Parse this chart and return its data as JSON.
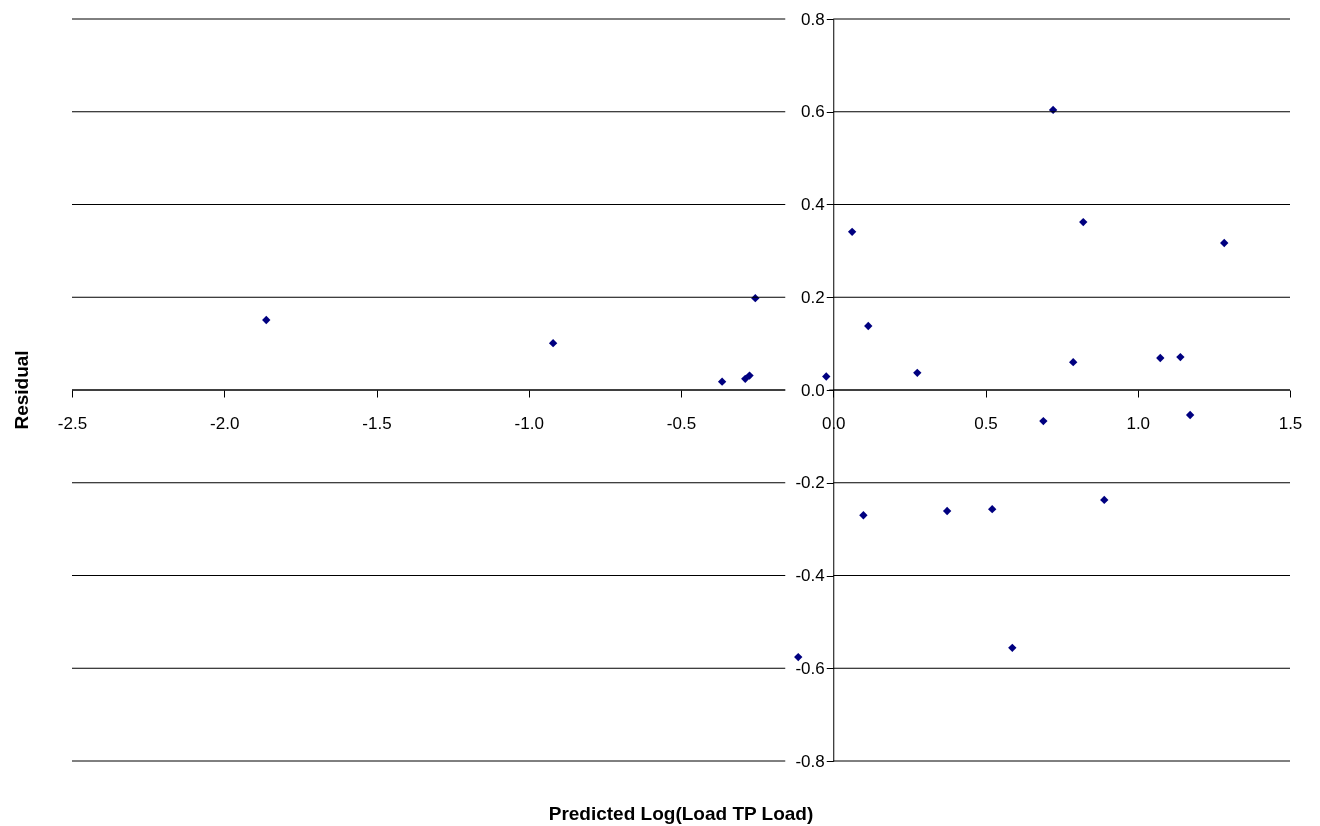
{
  "chart_data": {
    "type": "scatter",
    "xlabel": "Predicted Log(Load TP Load)",
    "ylabel": "Residual",
    "x": [
      -1.862,
      -0.92,
      -0.365,
      -0.289,
      -0.275,
      -0.256,
      -0.023,
      0.062,
      0.115,
      0.276,
      -0.115,
      0.099,
      0.374,
      0.522,
      0.588,
      0.69,
      0.722,
      0.788,
      0.821,
      0.89,
      1.074,
      1.14,
      1.172,
      1.284
    ],
    "series": [
      {
        "color": "#000080",
        "values": [
          0.151,
          0.101,
          0.018,
          0.024,
          0.031,
          0.198,
          0.029,
          0.341,
          0.138,
          0.037,
          -0.576,
          -0.27,
          -0.261,
          -0.257,
          -0.556,
          -0.067,
          0.604,
          0.06,
          0.362,
          -0.237,
          0.069,
          0.071,
          -0.054,
          0.317
        ]
      }
    ],
    "xlim": [
      -2.5,
      1.5
    ],
    "xticks": [
      -2.5,
      {
        "value": -2.0,
        "label": "-2.0"
      },
      -1.5,
      {
        "value": -1.0,
        "label": "-1.0"
      },
      -0.5,
      {
        "value": 0,
        "label": "0.0"
      },
      0.5,
      {
        "value": 1.0,
        "label": "1.0"
      },
      1.5
    ],
    "ylim": [
      -0.8,
      0.8
    ],
    "yticks": [
      -0.8,
      -0.6,
      -0.4,
      -0.2,
      {
        "value": 0,
        "label": "0.0"
      },
      0.2,
      0.4,
      0.6,
      0.8
    ],
    "grid": "y",
    "marker": "diamond"
  }
}
